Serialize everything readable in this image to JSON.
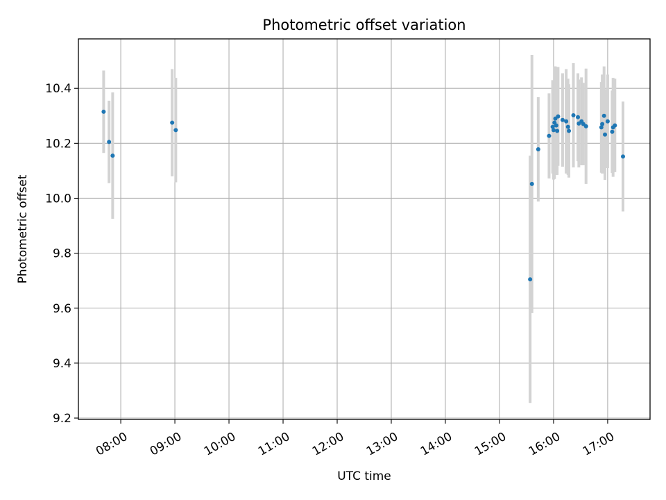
{
  "chart_data": {
    "type": "scatter",
    "title": "Photometric offset variation",
    "xlabel": "UTC time",
    "ylabel": "Photometric offset",
    "xlim": [
      "07:13",
      "17:47"
    ],
    "ylim": [
      9.195,
      10.58
    ],
    "grid": true,
    "x_ticks": [
      "08:00",
      "09:00",
      "10:00",
      "11:00",
      "12:00",
      "13:00",
      "14:00",
      "15:00",
      "16:00",
      "17:00"
    ],
    "y_ticks": [
      "9.2",
      "9.4",
      "9.6",
      "9.8",
      "10.0",
      "10.2",
      "10.4"
    ],
    "point_color": "#1f77b4",
    "errorbar_color": "#d3d3d3",
    "points": [
      {
        "t": "07:41",
        "y": 10.315,
        "err": 0.15
      },
      {
        "t": "07:47",
        "y": 10.205,
        "err": 0.15
      },
      {
        "t": "07:51",
        "y": 10.155,
        "err": 0.23
      },
      {
        "t": "08:57",
        "y": 10.275,
        "err": 0.195
      },
      {
        "t": "09:01",
        "y": 10.248,
        "err": 0.19
      },
      {
        "t": "15:34",
        "y": 9.705,
        "err": 0.45
      },
      {
        "t": "15:36",
        "y": 10.052,
        "err": 0.47
      },
      {
        "t": "15:43",
        "y": 10.178,
        "err": 0.19
      },
      {
        "t": "15:55",
        "y": 10.227,
        "err": 0.155
      },
      {
        "t": "15:59",
        "y": 10.26,
        "err": 0.17
      },
      {
        "t": "16:00",
        "y": 10.248,
        "err": 0.18
      },
      {
        "t": "16:01",
        "y": 10.275,
        "err": 0.205
      },
      {
        "t": "16:02",
        "y": 10.29,
        "err": 0.19
      },
      {
        "t": "16:03",
        "y": 10.265,
        "err": 0.18
      },
      {
        "t": "16:04",
        "y": 10.245,
        "err": 0.16
      },
      {
        "t": "16:05",
        "y": 10.298,
        "err": 0.18
      },
      {
        "t": "16:10",
        "y": 10.285,
        "err": 0.17
      },
      {
        "t": "16:14",
        "y": 10.28,
        "err": 0.19
      },
      {
        "t": "16:16",
        "y": 10.26,
        "err": 0.175
      },
      {
        "t": "16:17",
        "y": 10.245,
        "err": 0.17
      },
      {
        "t": "16:22",
        "y": 10.302,
        "err": 0.19
      },
      {
        "t": "16:27",
        "y": 10.295,
        "err": 0.16
      },
      {
        "t": "16:28",
        "y": 10.272,
        "err": 0.16
      },
      {
        "t": "16:31",
        "y": 10.28,
        "err": 0.16
      },
      {
        "t": "16:33",
        "y": 10.27,
        "err": 0.15
      },
      {
        "t": "16:36",
        "y": 10.262,
        "err": 0.21
      },
      {
        "t": "16:53",
        "y": 10.258,
        "err": 0.165
      },
      {
        "t": "16:54",
        "y": 10.27,
        "err": 0.18
      },
      {
        "t": "16:56",
        "y": 10.3,
        "err": 0.18
      },
      {
        "t": "16:57",
        "y": 10.232,
        "err": 0.165
      },
      {
        "t": "17:00",
        "y": 10.28,
        "err": 0.17
      },
      {
        "t": "17:05",
        "y": 10.242,
        "err": 0.15
      },
      {
        "t": "17:06",
        "y": 10.258,
        "err": 0.18
      },
      {
        "t": "17:08",
        "y": 10.265,
        "err": 0.17
      },
      {
        "t": "17:17",
        "y": 10.152,
        "err": 0.2
      }
    ]
  }
}
